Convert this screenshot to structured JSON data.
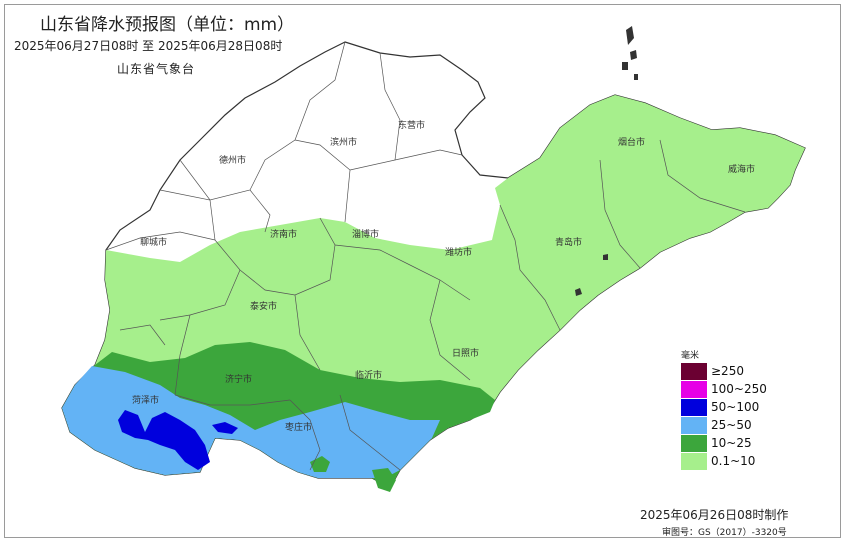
{
  "header": {
    "title": "山东省降水预报图（单位：mm）",
    "time_range": "2025年06月27日08时  至  2025年06月28日08时",
    "agency": "山东省气象台"
  },
  "cities": {
    "dezhou": "德州市",
    "binzhou": "滨州市",
    "dongying": "东营市",
    "yantai": "烟台市",
    "weihai": "威海市",
    "liaocheng": "聊城市",
    "jinan": "济南市",
    "zibo": "淄博市",
    "weifang": "潍坊市",
    "qingdao": "青岛市",
    "taian": "泰安市",
    "rizhao": "日照市",
    "jining": "济宁市",
    "linyi": "临沂市",
    "heze": "菏泽市",
    "zaozhuang": "枣庄市"
  },
  "legend": {
    "unit": "毫米",
    "items": [
      {
        "label": "≥250",
        "color": "#6b0032"
      },
      {
        "label": "100~250",
        "color": "#e600e6"
      },
      {
        "label": "50~100",
        "color": "#0000dd"
      },
      {
        "label": "25~50",
        "color": "#63b3f5"
      },
      {
        "label": "10~25",
        "color": "#3ca63c"
      },
      {
        "label": "0.1~10",
        "color": "#a6ef8c"
      }
    ]
  },
  "footer": {
    "made": "2025年06月26日08时制作",
    "review": "审图号：GS（2017）-3320号"
  }
}
